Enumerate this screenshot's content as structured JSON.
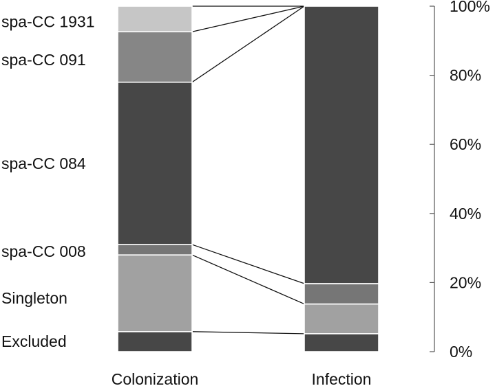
{
  "chart_data": {
    "type": "stacked_bar",
    "categories": [
      "Colonization",
      "Infection"
    ],
    "segment_labels": [
      "Excluded",
      "Singleton",
      "spa-CC 008",
      "spa-CC 084",
      "spa-CC 091",
      "spa-CC 1931"
    ],
    "series": [
      {
        "name": "Excluded",
        "values": [
          5.8,
          5.2
        ],
        "color": "#474747"
      },
      {
        "name": "Singleton",
        "values": [
          22.2,
          8.6
        ],
        "color": "#a1a1a1"
      },
      {
        "name": "spa-CC 008",
        "values": [
          3.0,
          5.9
        ],
        "color": "#767676"
      },
      {
        "name": "spa-CC 084",
        "values": [
          47.0,
          80.3
        ],
        "color": "#474747"
      },
      {
        "name": "spa-CC 091",
        "values": [
          14.6,
          0
        ],
        "color": "#868686"
      },
      {
        "name": "spa-CC 1931",
        "values": [
          7.4,
          0
        ],
        "color": "#c6c6c6"
      }
    ],
    "connectors": [
      {
        "from": 5.8,
        "to": 5.2
      },
      {
        "from": 28.0,
        "to": 13.8
      },
      {
        "from": 31.0,
        "to": 19.7
      },
      {
        "from": 78.0,
        "to": 100
      },
      {
        "from": 92.6,
        "to": 100
      },
      {
        "from": 100,
        "to": 100
      }
    ],
    "yaxis": {
      "ticks": [
        0,
        20,
        40,
        60,
        80,
        100
      ],
      "tick_labels": [
        "0%",
        "20%",
        "40%",
        "60%",
        "80%",
        "100%"
      ],
      "ylim": [
        0,
        100
      ],
      "position": "right"
    },
    "title": "",
    "xlabel": "",
    "ylabel": ""
  }
}
